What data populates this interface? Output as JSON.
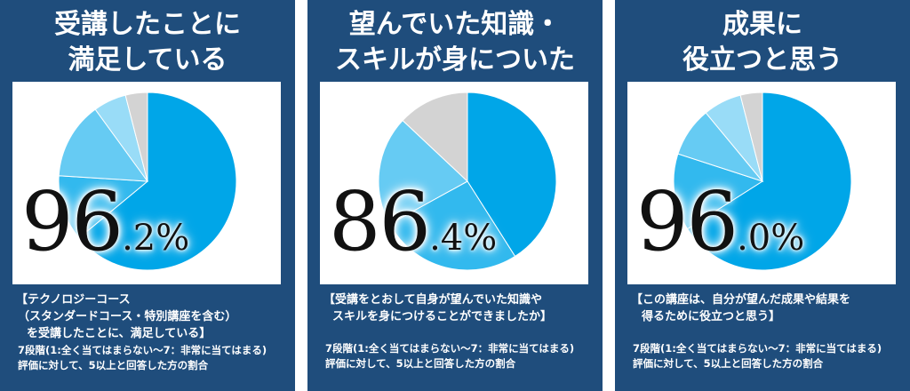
{
  "colors": {
    "card_background": "#1f4d7c",
    "slice_colors": [
      "#00a6e8",
      "#32b9ee",
      "#66cbf3",
      "#99dcf7",
      "#d3d3d3"
    ]
  },
  "chart_data": [
    {
      "type": "pie",
      "title_lines": [
        "受講したことに",
        "満足している"
      ],
      "headline": {
        "int": "96",
        "dec": ".2%"
      },
      "values": [
        64,
        12,
        14,
        6,
        4
      ],
      "description_lines": [
        "【テクノロジーコース",
        "（スタンダードコース・特別講座を含む）",
        "を受講したことに、満足している】"
      ],
      "note_lines": [
        "7段階(1:全く当てはまらない〜7：非常に当てはまる)",
        "評価に対して、5以上と回答した方の割合"
      ]
    },
    {
      "type": "pie",
      "title_lines": [
        "望んでいた知識・",
        "スキルが身についた"
      ],
      "headline": {
        "int": "86",
        "dec": ".4%"
      },
      "values": [
        41,
        26,
        20,
        13
      ],
      "description_lines": [
        "【受講をとおして自身が望んでいた知識や",
        "スキルを身につけることができましたか】"
      ],
      "note_lines": [
        "7段階(1:全く当てはまらない〜7：非常に当てはまる)",
        "評価に対して、5以上と回答した方の割合"
      ]
    },
    {
      "type": "pie",
      "title_lines": [
        "成果に",
        "役立つと思う"
      ],
      "headline": {
        "int": "96",
        "dec": ".0%"
      },
      "values": [
        66,
        14,
        9,
        7,
        4
      ],
      "description_lines": [
        "【この講座は、自分が望んだ成果や結果を",
        "得るために役立つと思う】"
      ],
      "note_lines": [
        "7段階(1:全く当てはまらない〜7：非常に当てはまる)",
        "評価に対して、5以上と回答した方の割合"
      ]
    }
  ]
}
